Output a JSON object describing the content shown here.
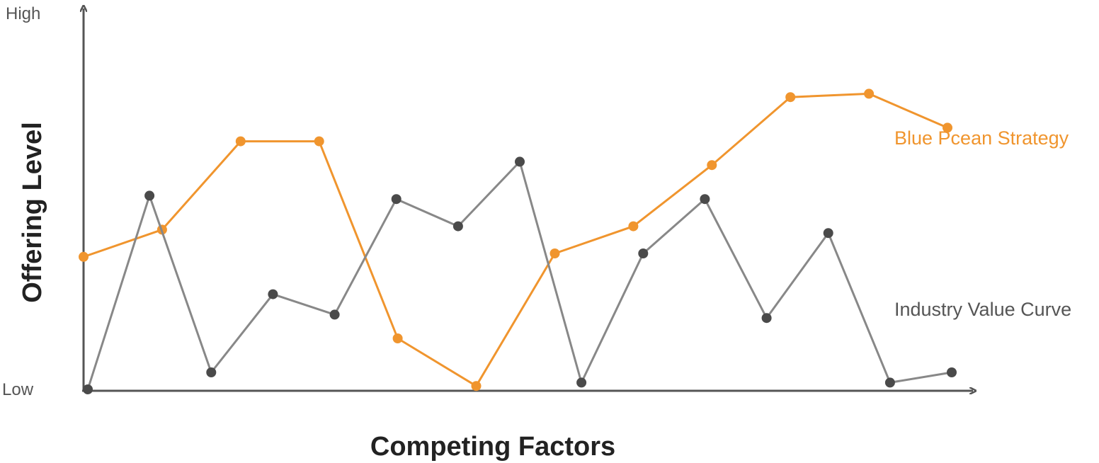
{
  "chart_data": {
    "type": "line",
    "xlabel": "Competing Factors",
    "ylabel": "Offering Level",
    "y_high_label": "High",
    "y_low_label": "Low",
    "ylim": [
      0,
      10
    ],
    "grid": false,
    "legend": "inline labels at right",
    "series": [
      {
        "name": "Blue Pcean Strategy",
        "color": "#F0952E",
        "values": [
          3.9,
          4.7,
          7.3,
          7.3,
          1.5,
          0.1,
          4.0,
          4.8,
          6.6,
          8.6,
          8.7,
          7.7
        ]
      },
      {
        "name": "Industry Value Curve",
        "color": "#888888",
        "marker_color": "#4A4A4A",
        "values": [
          0.0,
          5.7,
          0.5,
          2.8,
          2.2,
          5.6,
          4.8,
          6.7,
          0.2,
          4.0,
          5.6,
          2.1,
          4.6,
          0.2,
          0.5
        ]
      }
    ]
  }
}
